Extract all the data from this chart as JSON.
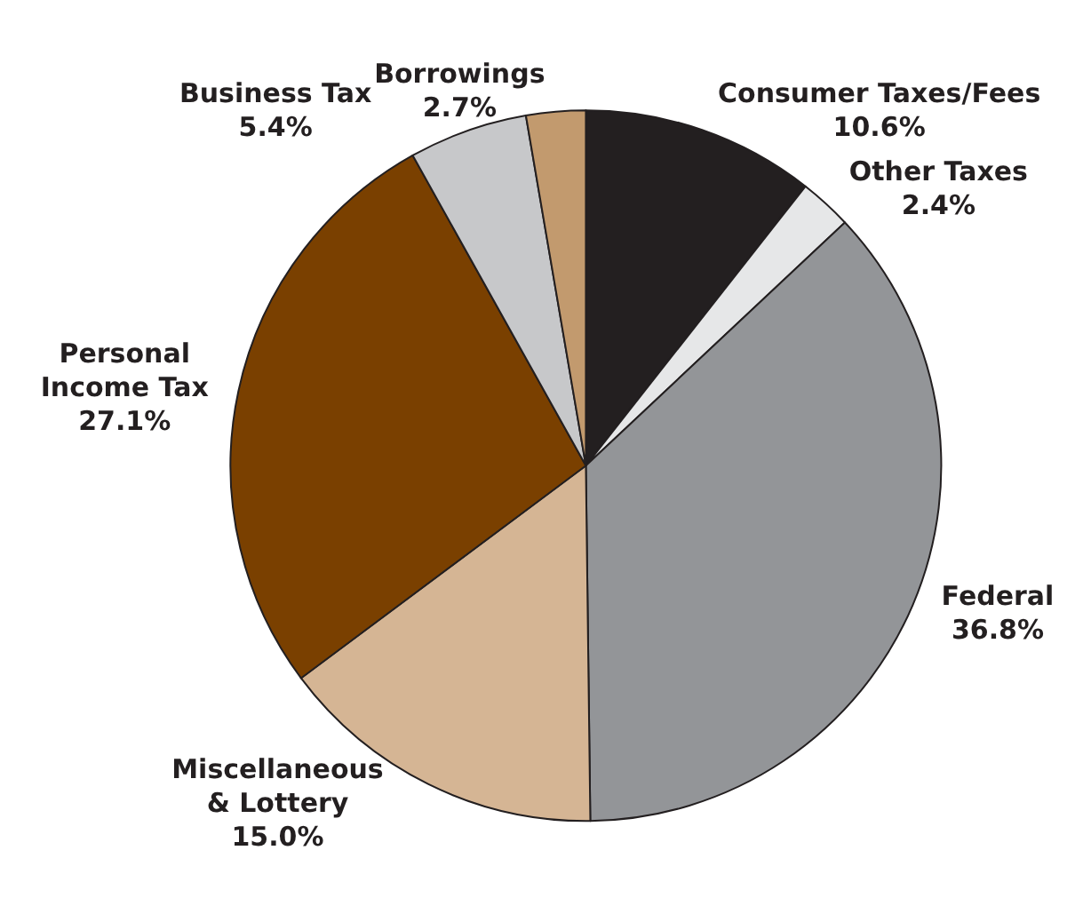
{
  "chart_data": {
    "type": "pie",
    "categories": [
      "Consumer Taxes/Fees",
      "Other Taxes",
      "Federal",
      "Miscellaneous\n& Lottery",
      "Personal\nIncome Tax",
      "Business Tax",
      "Borrowings"
    ],
    "values": [
      10.6,
      2.4,
      36.8,
      15.0,
      27.1,
      5.4,
      2.7
    ],
    "value_labels": [
      "10.6%",
      "2.4%",
      "36.8%",
      "15.0%",
      "27.1%",
      "5.4%",
      "2.7%"
    ],
    "colors": [
      "#231f20",
      "#e6e7e8",
      "#939598",
      "#d5b594",
      "#7a4000",
      "#c7c8ca",
      "#c29a6e"
    ],
    "legend": false
  }
}
